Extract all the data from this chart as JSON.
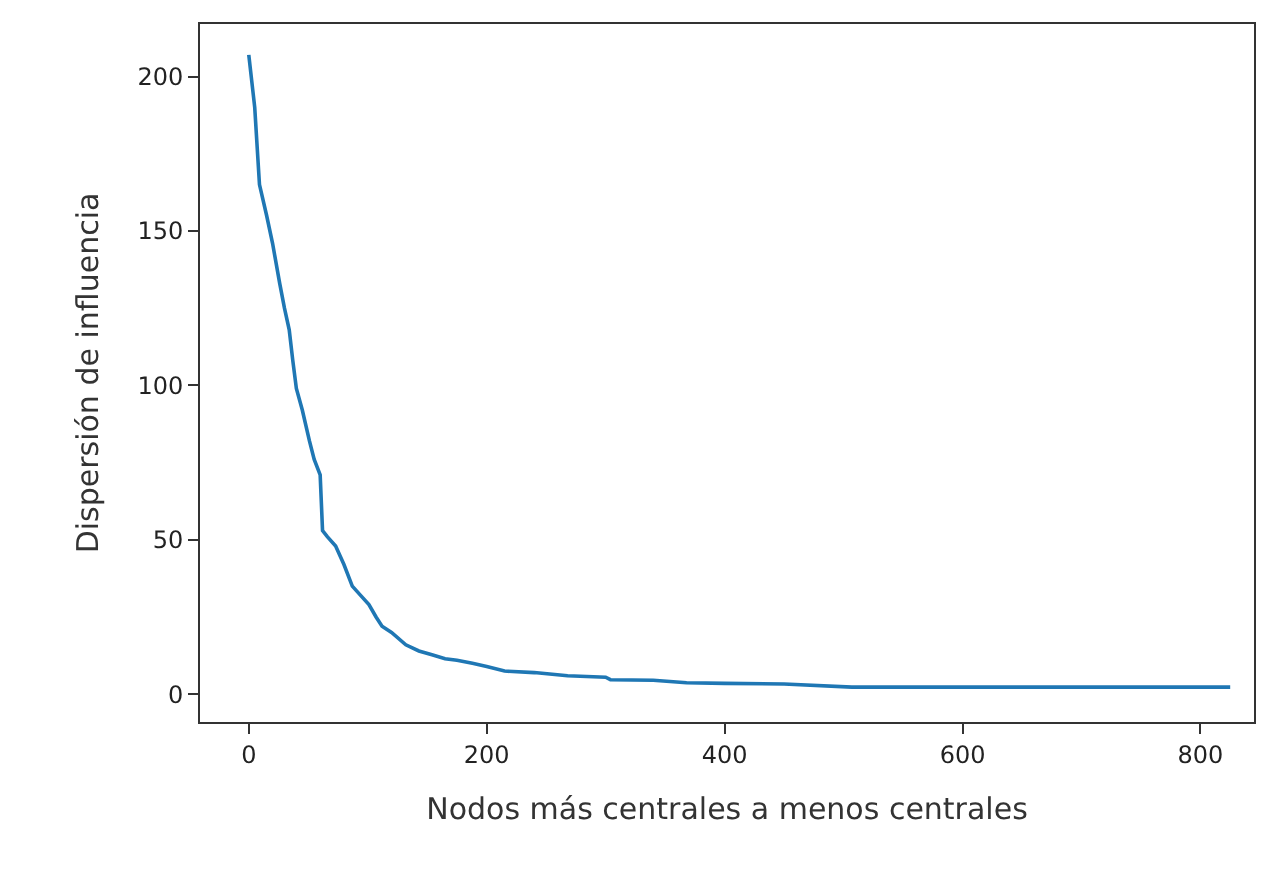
{
  "chart_data": {
    "type": "line",
    "xlabel": "Nodos más centrales a menos centrales",
    "ylabel": "Dispersión de influencia",
    "x": [
      0,
      5,
      9,
      15,
      20,
      26,
      30,
      34,
      37,
      40,
      45,
      51,
      55,
      60,
      62,
      66,
      73,
      80,
      87,
      94,
      101,
      107,
      112,
      120,
      132,
      143,
      154,
      165,
      175,
      188,
      200,
      215,
      240,
      268,
      300,
      304,
      340,
      368,
      400,
      450,
      507,
      600,
      700,
      825
    ],
    "series": [
      {
        "color": "#1f77b4",
        "values": [
          207,
          190,
          165,
          155,
          146,
          133,
          125,
          118,
          108,
          99,
          92,
          82,
          76,
          71,
          53,
          51,
          48,
          42,
          35,
          32,
          29,
          25,
          22,
          20,
          16,
          14,
          12.8,
          11.5,
          11,
          10,
          9,
          7.5,
          7,
          6,
          5.5,
          4.7,
          4.5,
          3.7,
          3.5,
          3.3,
          2.3,
          2.3,
          2.3,
          2.3
        ]
      }
    ],
    "xlim": [
      -41,
      845
    ],
    "ylim": [
      -9,
      217
    ],
    "xticks": [
      0,
      200,
      400,
      600,
      800
    ],
    "yticks": [
      0,
      50,
      100,
      150,
      200
    ],
    "marker": "none",
    "line_style": "solid"
  }
}
